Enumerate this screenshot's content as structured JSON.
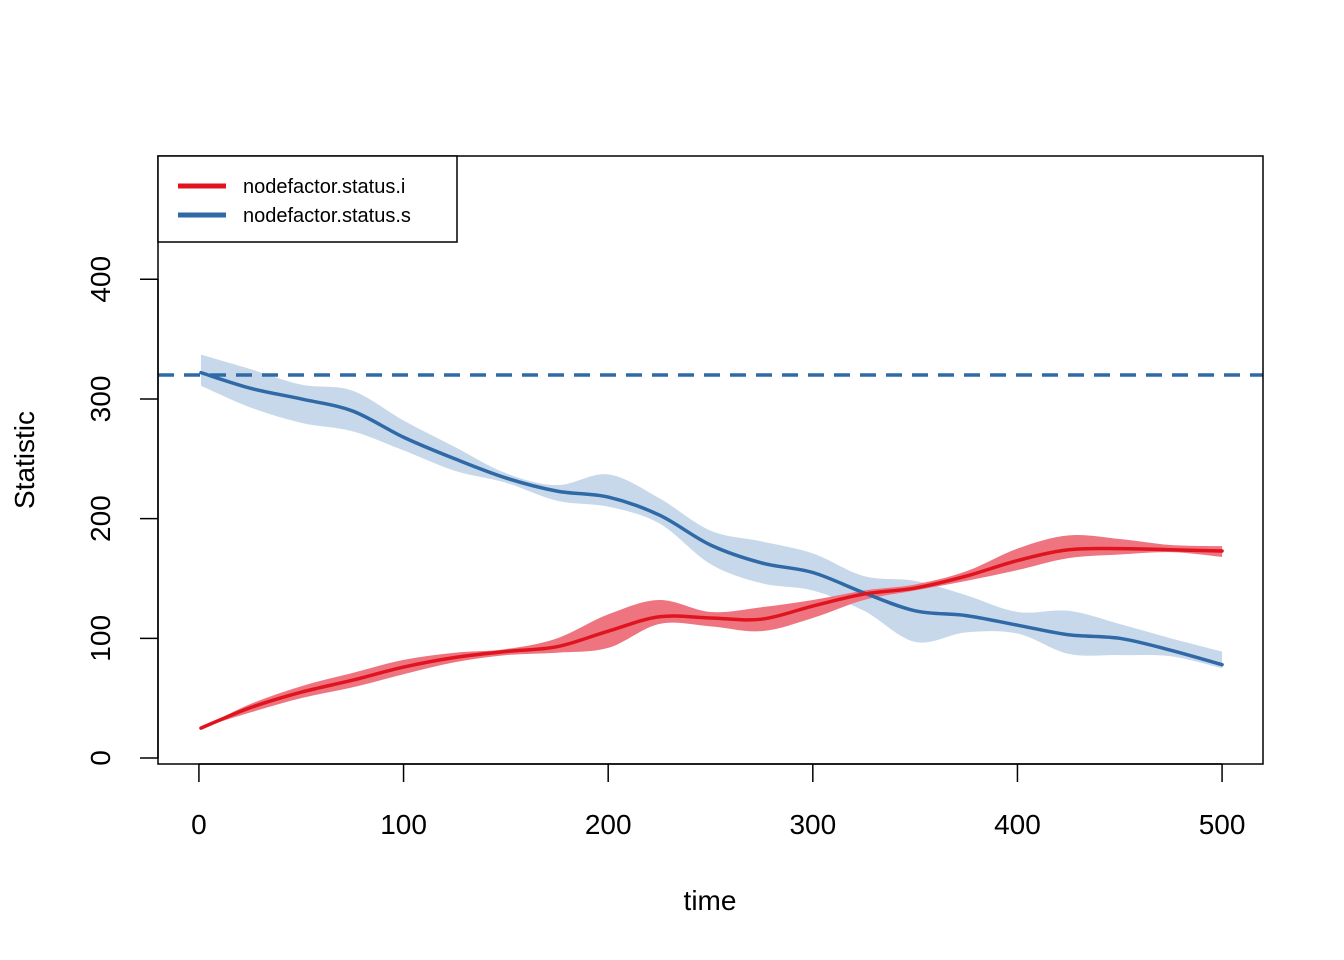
{
  "chart_data": {
    "type": "line",
    "title": "",
    "xlabel": "time",
    "ylabel": "Statistic",
    "xlim": [
      -20,
      520
    ],
    "ylim": [
      -5,
      503
    ],
    "xticks": [
      0,
      100,
      200,
      300,
      400,
      500
    ],
    "yticks": [
      0,
      100,
      200,
      300,
      400
    ],
    "xtick_labels": [
      "0",
      "100",
      "200",
      "300",
      "400",
      "500"
    ],
    "ytick_labels": [
      "0",
      "100",
      "200",
      "300",
      "400"
    ],
    "grid": false,
    "legend": {
      "placement": "top-left"
    },
    "target_line": {
      "y": 320,
      "style": "dashed",
      "color": "#2f6aa6"
    },
    "x": [
      1,
      25,
      50,
      75,
      100,
      125,
      150,
      175,
      200,
      225,
      250,
      275,
      300,
      325,
      350,
      375,
      400,
      425,
      450,
      475,
      500
    ],
    "series": [
      {
        "name": "nodefactor.status.i",
        "color": "#e0141e",
        "band_color": "#ee7580",
        "values": [
          25,
          42,
          55,
          65,
          76,
          84,
          89,
          93,
          106,
          118,
          117,
          116,
          127,
          137,
          142,
          152,
          165,
          174,
          175,
          174,
          173
        ],
        "lower": [
          25,
          38,
          50,
          59,
          70,
          80,
          86,
          88,
          92,
          112,
          110,
          106,
          117,
          132,
          140,
          148,
          157,
          167,
          170,
          172,
          168
        ],
        "upper": [
          25,
          45,
          60,
          71,
          82,
          88,
          91,
          100,
          120,
          132,
          122,
          126,
          132,
          140,
          145,
          156,
          175,
          186,
          183,
          178,
          177
        ]
      },
      {
        "name": "nodefactor.status.s",
        "color": "#2f6aa6",
        "band_color": "#c8d8eb",
        "values": [
          322,
          309,
          300,
          290,
          268,
          250,
          234,
          223,
          218,
          203,
          178,
          163,
          155,
          138,
          123,
          119,
          111,
          103,
          100,
          90,
          78
        ],
        "lower": [
          311,
          293,
          280,
          273,
          257,
          240,
          230,
          215,
          210,
          196,
          162,
          146,
          140,
          123,
          97,
          105,
          104,
          87,
          86,
          85,
          75
        ],
        "upper": [
          337,
          325,
          312,
          307,
          282,
          260,
          238,
          228,
          237,
          217,
          190,
          181,
          171,
          152,
          148,
          136,
          122,
          123,
          112,
          100,
          89
        ]
      }
    ]
  }
}
